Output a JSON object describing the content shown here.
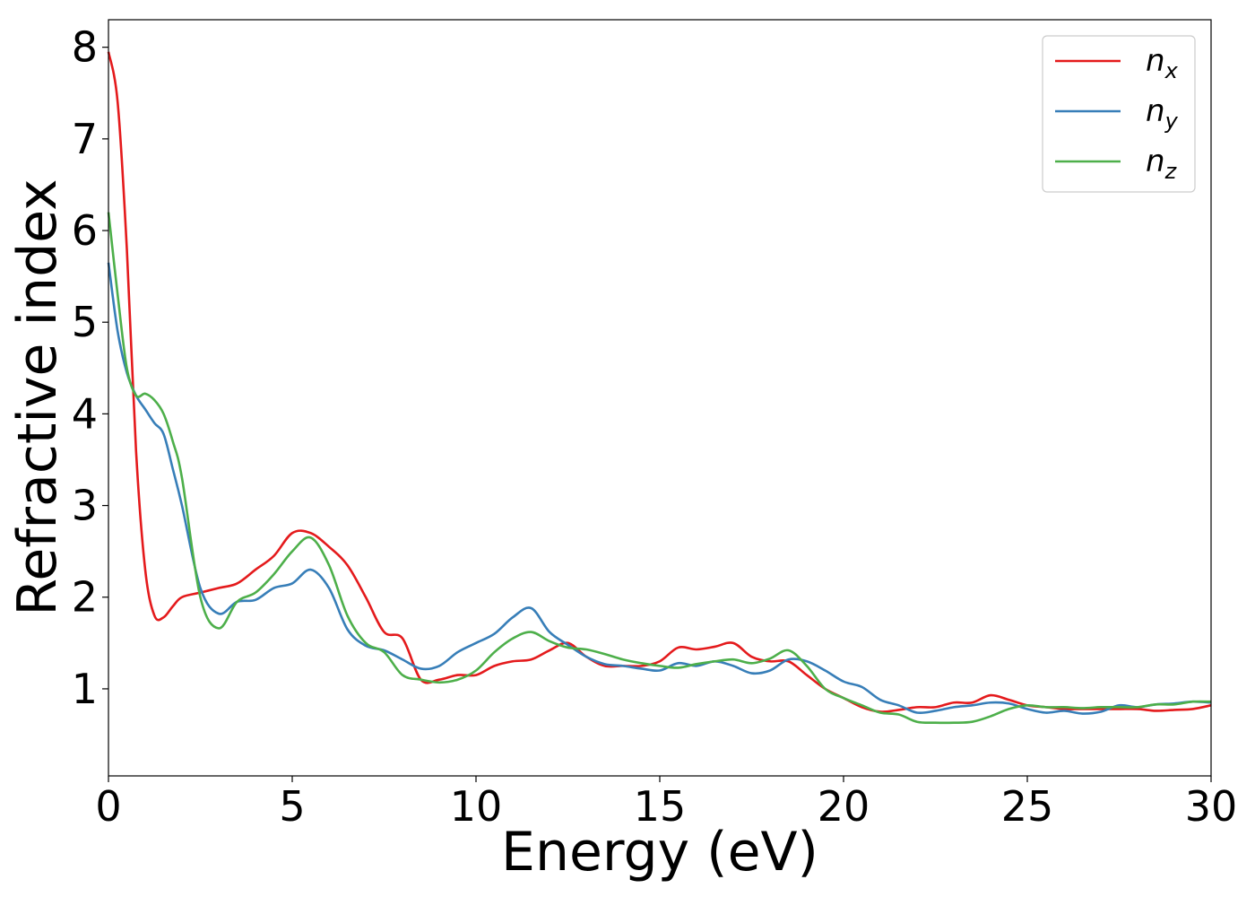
{
  "chart_data": {
    "type": "line",
    "title": "",
    "xlabel": "Energy (eV)",
    "ylabel": "Refractive index",
    "xlim": [
      0,
      30
    ],
    "ylim": [
      0.05,
      8.3
    ],
    "xticks": [
      0,
      5,
      10,
      15,
      20,
      25,
      30
    ],
    "yticks": [
      1,
      2,
      3,
      4,
      5,
      6,
      7,
      8
    ],
    "grid": false,
    "legend_position": "top-right",
    "series": [
      {
        "name": "n_x",
        "label_base": "n",
        "label_sub": "x",
        "color": "#e41a1c",
        "x": [
          0,
          0.25,
          0.5,
          0.75,
          1.0,
          1.25,
          1.5,
          1.75,
          2.0,
          2.5,
          3.0,
          3.5,
          4.0,
          4.5,
          5.0,
          5.5,
          6.0,
          6.5,
          7.0,
          7.5,
          8.0,
          8.5,
          9.0,
          9.5,
          10.0,
          10.5,
          11.0,
          11.5,
          12.0,
          12.5,
          13.0,
          13.5,
          14.0,
          14.5,
          15.0,
          15.5,
          16.0,
          16.5,
          17.0,
          17.5,
          18.0,
          18.5,
          19.0,
          19.5,
          20.0,
          20.5,
          21.0,
          21.5,
          22.0,
          22.5,
          23.0,
          23.5,
          24.0,
          24.5,
          25.0,
          25.5,
          26.0,
          26.5,
          27.0,
          27.5,
          28.0,
          28.5,
          29.0,
          29.5,
          30.0
        ],
        "values": [
          7.95,
          7.4,
          5.8,
          3.6,
          2.3,
          1.8,
          1.78,
          1.9,
          2.0,
          2.05,
          2.1,
          2.15,
          2.3,
          2.45,
          2.7,
          2.7,
          2.55,
          2.35,
          2.0,
          1.62,
          1.55,
          1.1,
          1.1,
          1.15,
          1.15,
          1.25,
          1.3,
          1.32,
          1.42,
          1.5,
          1.35,
          1.25,
          1.25,
          1.25,
          1.3,
          1.45,
          1.43,
          1.46,
          1.5,
          1.35,
          1.3,
          1.3,
          1.15,
          1.0,
          0.9,
          0.8,
          0.75,
          0.77,
          0.8,
          0.8,
          0.85,
          0.85,
          0.93,
          0.88,
          0.82,
          0.8,
          0.78,
          0.78,
          0.78,
          0.78,
          0.78,
          0.76,
          0.77,
          0.78,
          0.82
        ]
      },
      {
        "name": "n_y",
        "label_base": "n",
        "label_sub": "y",
        "color": "#377eb8",
        "x": [
          0,
          0.25,
          0.5,
          0.75,
          1.0,
          1.25,
          1.5,
          1.75,
          2.0,
          2.5,
          3.0,
          3.5,
          4.0,
          4.5,
          5.0,
          5.5,
          6.0,
          6.5,
          7.0,
          7.5,
          8.0,
          8.5,
          9.0,
          9.5,
          10.0,
          10.5,
          11.0,
          11.5,
          12.0,
          12.5,
          13.0,
          13.5,
          14.0,
          14.5,
          15.0,
          15.5,
          16.0,
          16.5,
          17.0,
          17.5,
          18.0,
          18.5,
          19.0,
          19.5,
          20.0,
          20.5,
          21.0,
          21.5,
          22.0,
          22.5,
          23.0,
          23.5,
          24.0,
          24.5,
          25.0,
          25.5,
          26.0,
          26.5,
          27.0,
          27.5,
          28.0,
          28.5,
          29.0,
          29.5,
          30.0
        ],
        "values": [
          5.65,
          4.9,
          4.45,
          4.2,
          4.05,
          3.9,
          3.78,
          3.4,
          3.0,
          2.1,
          1.82,
          1.95,
          1.97,
          2.1,
          2.15,
          2.3,
          2.1,
          1.65,
          1.47,
          1.42,
          1.32,
          1.22,
          1.25,
          1.4,
          1.5,
          1.6,
          1.78,
          1.88,
          1.62,
          1.48,
          1.35,
          1.27,
          1.25,
          1.22,
          1.2,
          1.28,
          1.25,
          1.3,
          1.25,
          1.17,
          1.2,
          1.32,
          1.3,
          1.2,
          1.08,
          1.02,
          0.88,
          0.82,
          0.74,
          0.76,
          0.8,
          0.82,
          0.85,
          0.84,
          0.78,
          0.74,
          0.76,
          0.73,
          0.75,
          0.82,
          0.8,
          0.83,
          0.84,
          0.86,
          0.85
        ]
      },
      {
        "name": "n_z",
        "label_base": "n",
        "label_sub": "z",
        "color": "#4daf4a",
        "x": [
          0,
          0.25,
          0.5,
          0.75,
          1.0,
          1.25,
          1.5,
          1.75,
          2.0,
          2.5,
          3.0,
          3.5,
          4.0,
          4.5,
          5.0,
          5.5,
          6.0,
          6.5,
          7.0,
          7.5,
          8.0,
          8.5,
          9.0,
          9.5,
          10.0,
          10.5,
          11.0,
          11.5,
          12.0,
          12.5,
          13.0,
          13.5,
          14.0,
          14.5,
          15.0,
          15.5,
          16.0,
          16.5,
          17.0,
          17.5,
          18.0,
          18.5,
          19.0,
          19.5,
          20.0,
          20.5,
          21.0,
          21.5,
          22.0,
          22.5,
          23.0,
          23.5,
          24.0,
          24.5,
          25.0,
          25.5,
          26.0,
          26.5,
          27.0,
          27.5,
          28.0,
          28.5,
          29.0,
          29.5,
          30.0
        ],
        "values": [
          6.2,
          5.3,
          4.5,
          4.2,
          4.22,
          4.15,
          4.0,
          3.7,
          3.3,
          2.0,
          1.66,
          1.95,
          2.05,
          2.25,
          2.5,
          2.65,
          2.35,
          1.8,
          1.5,
          1.4,
          1.15,
          1.1,
          1.07,
          1.1,
          1.2,
          1.4,
          1.55,
          1.62,
          1.52,
          1.45,
          1.43,
          1.38,
          1.32,
          1.28,
          1.25,
          1.23,
          1.27,
          1.3,
          1.32,
          1.28,
          1.33,
          1.42,
          1.25,
          1.0,
          0.9,
          0.82,
          0.74,
          0.72,
          0.64,
          0.63,
          0.63,
          0.64,
          0.7,
          0.78,
          0.82,
          0.8,
          0.8,
          0.79,
          0.8,
          0.8,
          0.8,
          0.83,
          0.83,
          0.86,
          0.86
        ]
      }
    ]
  }
}
